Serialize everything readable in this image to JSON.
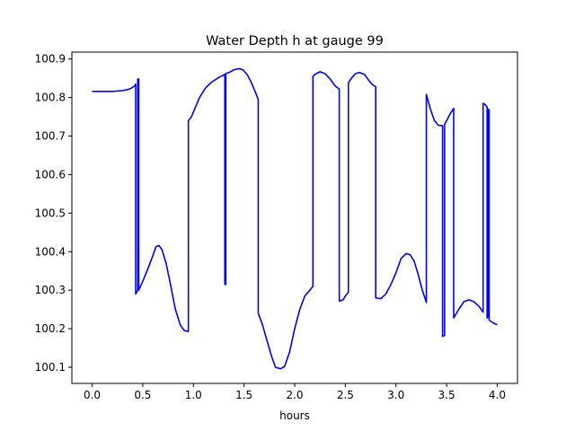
{
  "chart_data": {
    "type": "line",
    "title": "Water Depth h at gauge 99",
    "xlabel": "hours",
    "ylabel": "",
    "xlim": [
      -0.2,
      4.2
    ],
    "ylim": [
      100.058,
      100.918
    ],
    "x_ticks": [
      {
        "value": 0.0,
        "label": "0.0"
      },
      {
        "value": 0.5,
        "label": "0.5"
      },
      {
        "value": 1.0,
        "label": "1.0"
      },
      {
        "value": 1.5,
        "label": "1.5"
      },
      {
        "value": 2.0,
        "label": "2.0"
      },
      {
        "value": 2.5,
        "label": "2.5"
      },
      {
        "value": 3.0,
        "label": "3.0"
      },
      {
        "value": 3.5,
        "label": "3.5"
      },
      {
        "value": 4.0,
        "label": "4.0"
      }
    ],
    "y_ticks": [
      {
        "value": 100.1,
        "label": "100.1"
      },
      {
        "value": 100.2,
        "label": "100.2"
      },
      {
        "value": 100.3,
        "label": "100.3"
      },
      {
        "value": 100.4,
        "label": "100.4"
      },
      {
        "value": 100.5,
        "label": "100.5"
      },
      {
        "value": 100.6,
        "label": "100.6"
      },
      {
        "value": 100.7,
        "label": "100.7"
      },
      {
        "value": 100.8,
        "label": "100.8"
      },
      {
        "value": 100.9,
        "label": "100.9"
      }
    ],
    "grid": false,
    "legend": "none",
    "series": [
      {
        "color": "#0000ff",
        "points": [
          [
            0.0,
            100.816
          ],
          [
            0.1,
            100.816
          ],
          [
            0.2,
            100.816
          ],
          [
            0.3,
            100.818
          ],
          [
            0.37,
            100.822
          ],
          [
            0.42,
            100.83
          ],
          [
            0.43,
            100.835
          ],
          [
            0.43,
            100.29
          ],
          [
            0.45,
            100.3
          ],
          [
            0.45,
            100.848
          ],
          [
            0.46,
            100.848
          ],
          [
            0.46,
            100.3
          ],
          [
            0.5,
            100.323
          ],
          [
            0.56,
            100.362
          ],
          [
            0.6,
            100.39
          ],
          [
            0.63,
            100.413
          ],
          [
            0.66,
            100.416
          ],
          [
            0.69,
            100.405
          ],
          [
            0.73,
            100.37
          ],
          [
            0.77,
            100.32
          ],
          [
            0.82,
            100.252
          ],
          [
            0.87,
            100.21
          ],
          [
            0.91,
            100.195
          ],
          [
            0.95,
            100.193
          ],
          [
            0.95,
            100.74
          ],
          [
            0.98,
            100.75
          ],
          [
            1.02,
            100.775
          ],
          [
            1.06,
            100.8
          ],
          [
            1.12,
            100.825
          ],
          [
            1.18,
            100.84
          ],
          [
            1.25,
            100.852
          ],
          [
            1.31,
            100.86
          ],
          [
            1.31,
            100.315
          ],
          [
            1.32,
            100.315
          ],
          [
            1.32,
            100.862
          ],
          [
            1.36,
            100.866
          ],
          [
            1.4,
            100.872
          ],
          [
            1.45,
            100.875
          ],
          [
            1.49,
            100.872
          ],
          [
            1.53,
            100.86
          ],
          [
            1.57,
            100.84
          ],
          [
            1.61,
            100.815
          ],
          [
            1.64,
            100.795
          ],
          [
            1.64,
            100.24
          ],
          [
            1.68,
            100.212
          ],
          [
            1.72,
            100.175
          ],
          [
            1.77,
            100.13
          ],
          [
            1.81,
            100.1
          ],
          [
            1.86,
            100.096
          ],
          [
            1.9,
            100.102
          ],
          [
            1.95,
            100.14
          ],
          [
            2.0,
            100.2
          ],
          [
            2.05,
            100.25
          ],
          [
            2.1,
            100.285
          ],
          [
            2.15,
            100.3
          ],
          [
            2.18,
            100.31
          ],
          [
            2.18,
            100.855
          ],
          [
            2.2,
            100.86
          ],
          [
            2.25,
            100.867
          ],
          [
            2.3,
            100.862
          ],
          [
            2.35,
            100.848
          ],
          [
            2.4,
            100.83
          ],
          [
            2.44,
            100.822
          ],
          [
            2.44,
            100.272
          ],
          [
            2.48,
            100.275
          ],
          [
            2.5,
            100.285
          ],
          [
            2.53,
            100.295
          ],
          [
            2.53,
            100.838
          ],
          [
            2.56,
            100.85
          ],
          [
            2.6,
            100.862
          ],
          [
            2.64,
            100.865
          ],
          [
            2.69,
            100.86
          ],
          [
            2.73,
            100.845
          ],
          [
            2.77,
            100.833
          ],
          [
            2.8,
            100.828
          ],
          [
            2.8,
            100.28
          ],
          [
            2.85,
            100.278
          ],
          [
            2.9,
            100.29
          ],
          [
            2.95,
            100.315
          ],
          [
            3.0,
            100.345
          ],
          [
            3.05,
            100.382
          ],
          [
            3.1,
            100.395
          ],
          [
            3.14,
            100.392
          ],
          [
            3.18,
            100.375
          ],
          [
            3.22,
            100.34
          ],
          [
            3.26,
            100.3
          ],
          [
            3.3,
            100.268
          ],
          [
            3.3,
            100.808
          ],
          [
            3.34,
            100.77
          ],
          [
            3.38,
            100.74
          ],
          [
            3.42,
            100.728
          ],
          [
            3.46,
            100.727
          ],
          [
            3.46,
            100.18
          ],
          [
            3.48,
            100.183
          ],
          [
            3.48,
            100.73
          ],
          [
            3.51,
            100.745
          ],
          [
            3.54,
            100.76
          ],
          [
            3.57,
            100.772
          ],
          [
            3.57,
            100.228
          ],
          [
            3.62,
            100.25
          ],
          [
            3.67,
            100.27
          ],
          [
            3.72,
            100.275
          ],
          [
            3.77,
            100.27
          ],
          [
            3.82,
            100.258
          ],
          [
            3.86,
            100.243
          ],
          [
            3.86,
            100.785
          ],
          [
            3.88,
            100.782
          ],
          [
            3.9,
            100.775
          ],
          [
            3.9,
            100.228
          ],
          [
            3.91,
            100.23
          ],
          [
            3.91,
            100.77
          ],
          [
            3.92,
            100.768
          ],
          [
            3.92,
            100.222
          ],
          [
            3.96,
            100.215
          ],
          [
            4.0,
            100.21
          ]
        ]
      }
    ]
  }
}
